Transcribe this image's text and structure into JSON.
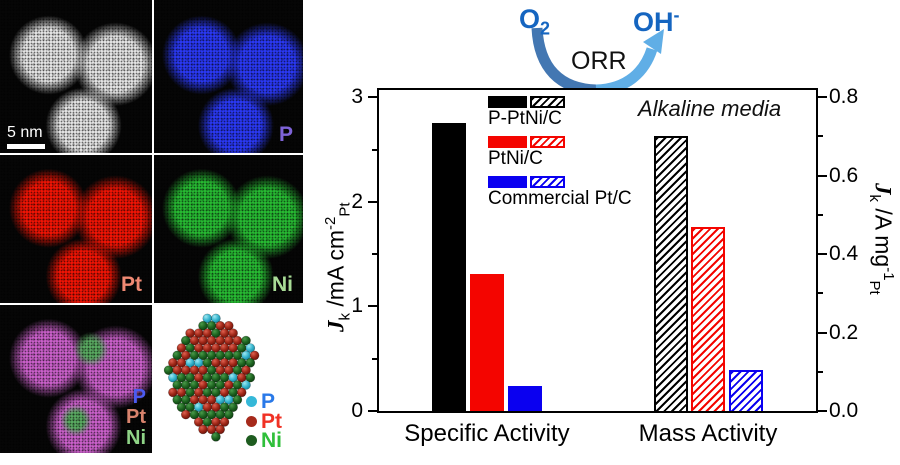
{
  "em_panels": {
    "haadf": {
      "scale_bar_label": "5 nm",
      "blob_color": "#e2e2e2"
    },
    "maps": [
      {
        "id": "p",
        "label": "P",
        "color": "#2a38f2",
        "label_color": "#7e63d8"
      },
      {
        "id": "pt",
        "label": "Pt",
        "color": "#ee1405",
        "label_color": "#ef8973"
      },
      {
        "id": "ni",
        "label": "Ni",
        "color": "#27b832",
        "label_color": "#a8dc96"
      }
    ],
    "overlay": {
      "color": "#c85fc8",
      "accent": "#58a860",
      "labels": [
        {
          "text": "P",
          "color": "#4b5bf0"
        },
        {
          "text": "Pt",
          "color": "#d8836d"
        },
        {
          "text": "Ni",
          "color": "#8fd487"
        }
      ]
    },
    "model_legend": [
      {
        "label": "P",
        "dot_color": "#35b8d8",
        "text_color": "#2979e8"
      },
      {
        "label": "Pt",
        "dot_color": "#a62a1b",
        "text_color": "#f03124"
      },
      {
        "label": "Ni",
        "dot_color": "#1e5c1f",
        "text_color": "#2fbf3a"
      }
    ],
    "atom_colors": {
      "pt": "#b5271d",
      "ni": "#1e6b1e",
      "p": "#3bbfd6"
    }
  },
  "reaction": {
    "reactant_main": "O",
    "reactant_sub": "2",
    "product_main": "OH",
    "product_sup": "-",
    "arrow_label": "ORR",
    "text_color": "#1565c0",
    "arrow_color_left": "#4377b2",
    "arrow_color_right": "#60aee6"
  },
  "chart_data": {
    "type": "bar",
    "annotation": "Alkaline media",
    "categories": [
      "Specific Activity",
      "Mass Activity"
    ],
    "series": [
      {
        "name": "P-PtNi/C",
        "color": "#000000",
        "specific_activity": 2.75,
        "mass_activity": 0.7
      },
      {
        "name": "PtNi/C",
        "color": "#f40500",
        "specific_activity": 1.31,
        "mass_activity": 0.47
      },
      {
        "name": "Commercial Pt/C",
        "color": "#0a00f0",
        "specific_activity": 0.24,
        "mass_activity": 0.105
      }
    ],
    "style_note": "specific-activity bars solid, mass-activity bars diagonally hatched",
    "left_axis": {
      "label_main": "J",
      "label_sub": "k",
      "label_unit": " /mA cm",
      "label_sup": "-2",
      "label_unit_sub": "Pt",
      "range": [
        0,
        3.07
      ],
      "ticks": [
        0,
        1,
        2,
        3
      ],
      "tick_labels": [
        "0",
        "1",
        "2",
        "3"
      ],
      "minor_ticks": [
        0.5,
        1.5,
        2.5
      ]
    },
    "right_axis": {
      "label_main": "J",
      "label_sub": "k",
      "label_unit": " /A mg",
      "label_sup": "-1",
      "label_unit_sub": "Pt",
      "range": [
        0,
        0.818
      ],
      "ticks": [
        0,
        0.2,
        0.4,
        0.6,
        0.8
      ],
      "tick_labels": [
        "0.0",
        "0.2",
        "0.4",
        "0.6",
        "0.8"
      ],
      "minor_ticks": [
        0.1,
        0.3,
        0.5,
        0.7
      ]
    },
    "legend_position": "upper-left-inside"
  }
}
